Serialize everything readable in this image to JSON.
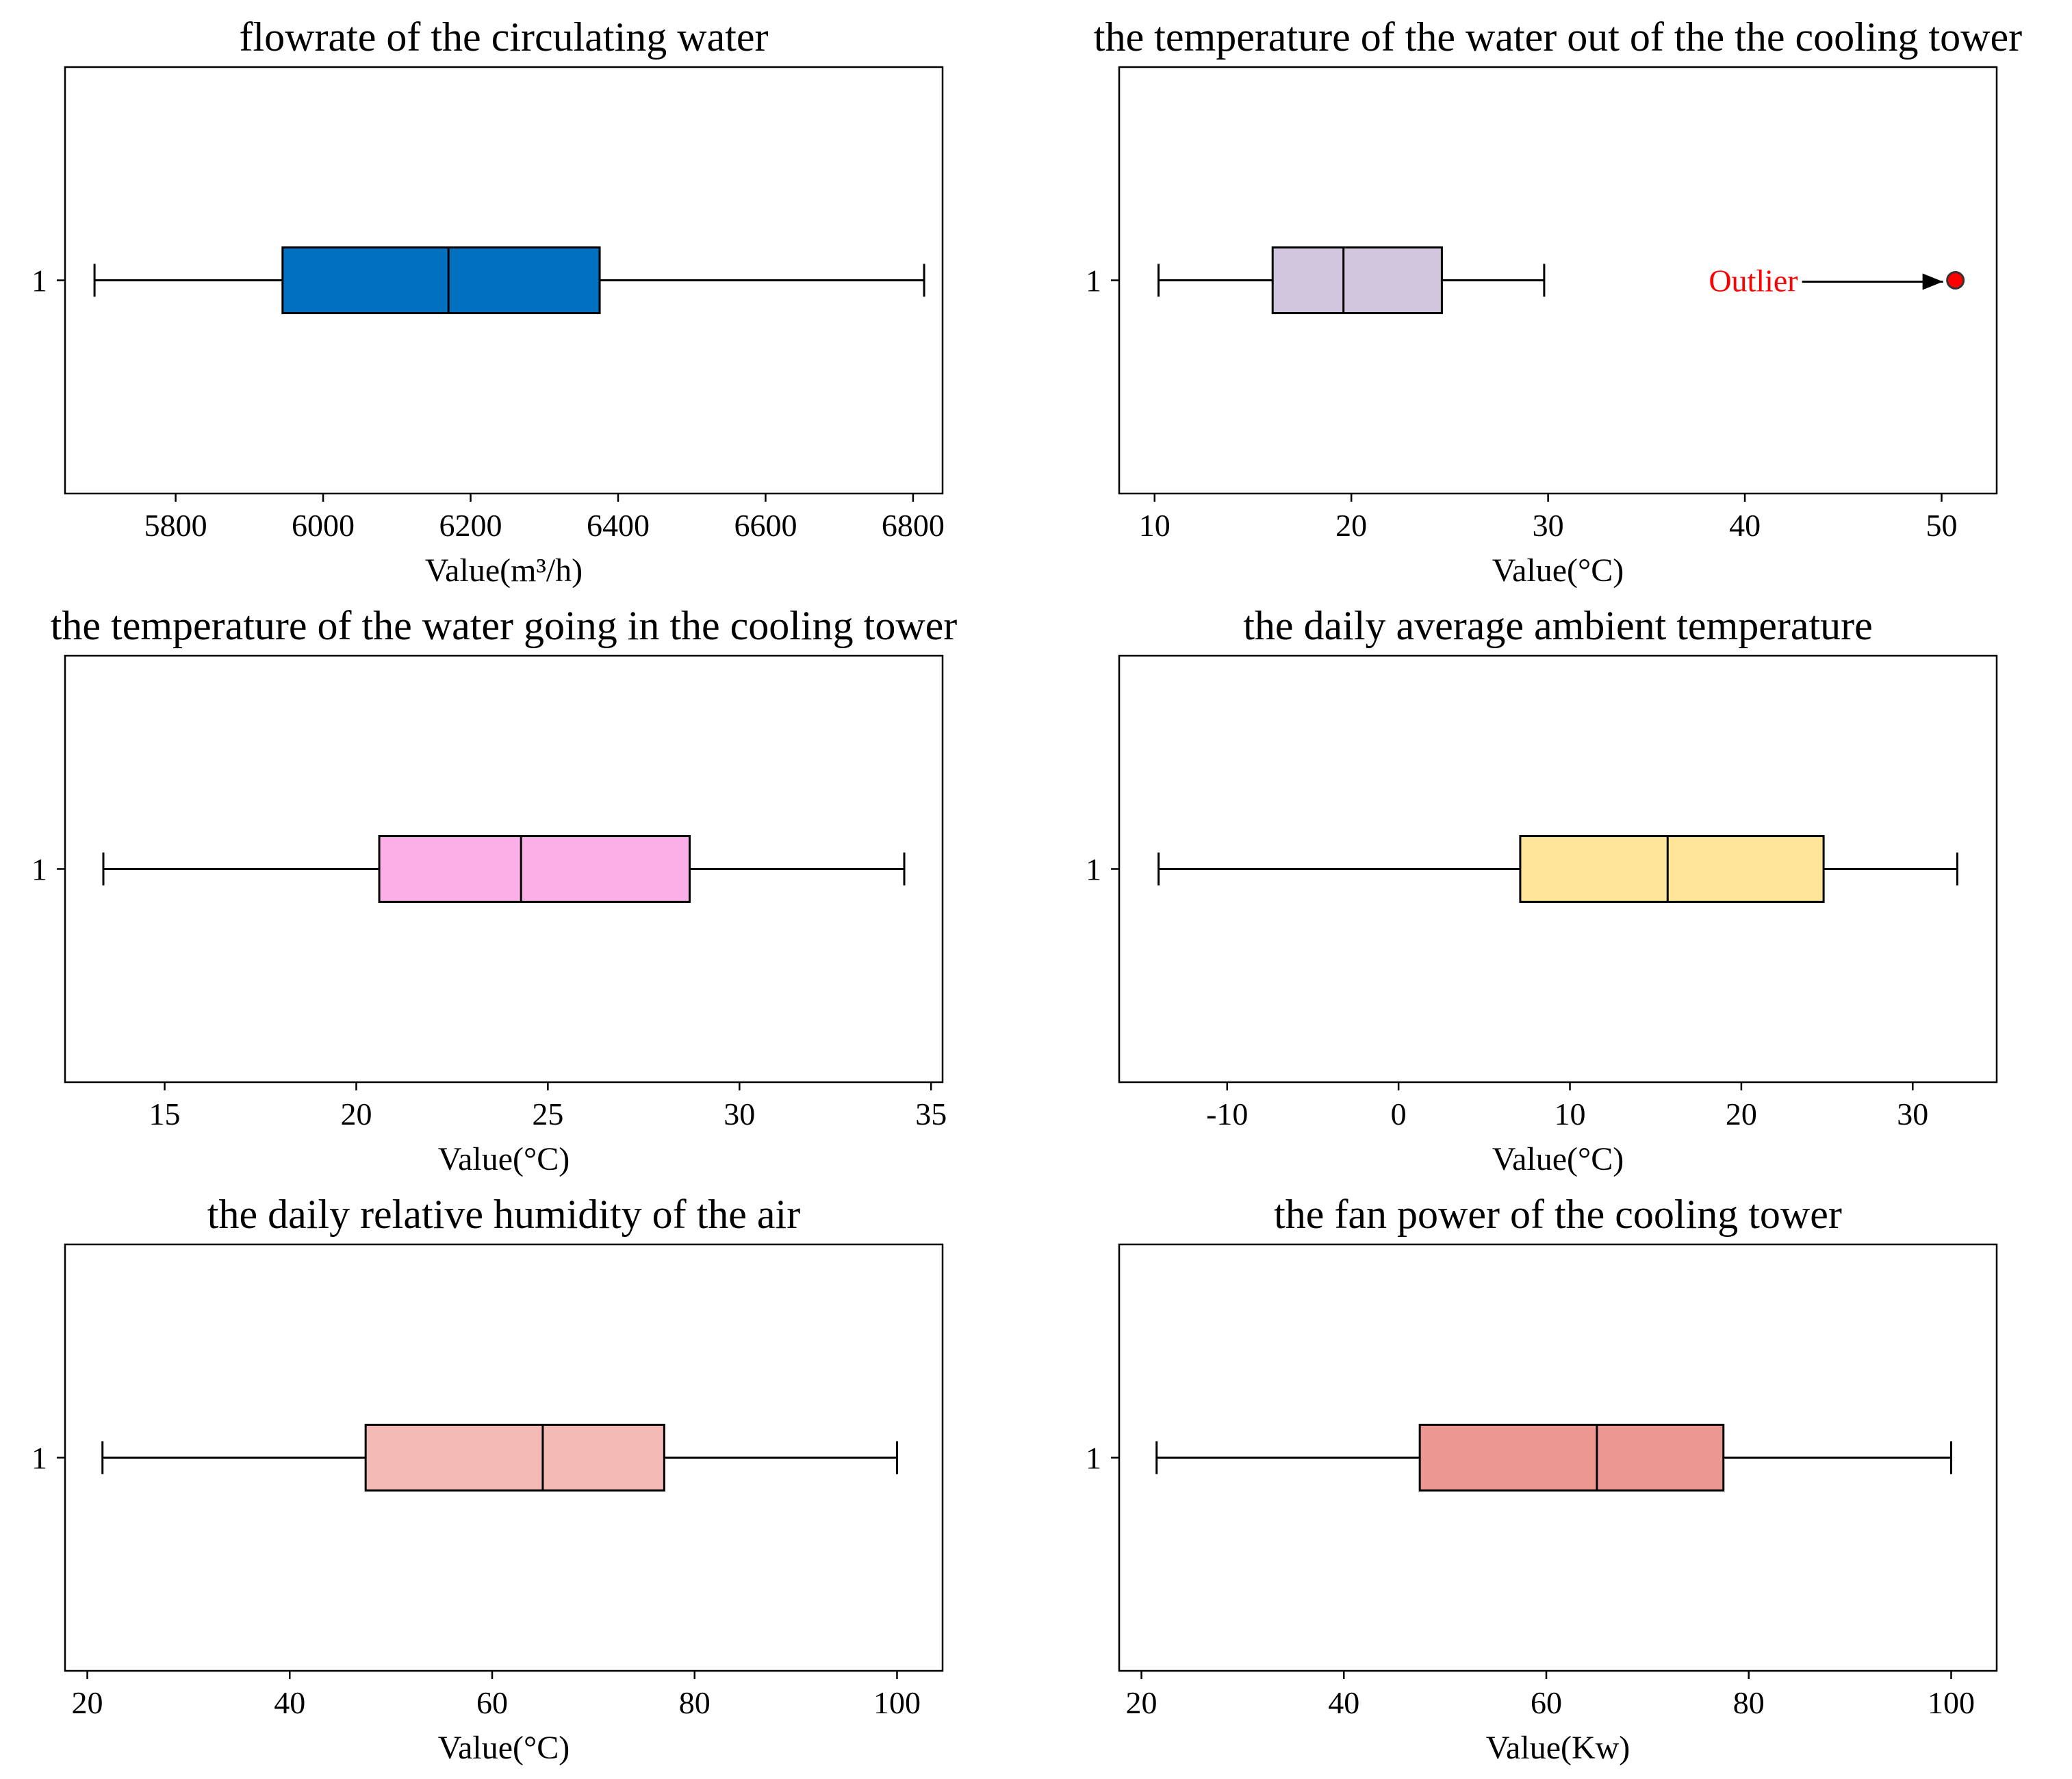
{
  "chart_data": [
    {
      "type": "boxplot",
      "title": "flowrate of the circulating water",
      "xlabel": "Value(m³/h)",
      "ylabel": "",
      "category_labels": [
        "1"
      ],
      "xlim": [
        5650,
        6840
      ],
      "xticks": [
        5800,
        6000,
        6200,
        6400,
        6600,
        6800
      ],
      "stats": {
        "whisker_low": 5690,
        "q1": 5945,
        "median": 6170,
        "q3": 6375,
        "whisker_high": 6815
      },
      "outliers": [],
      "box_color": "#0070C0"
    },
    {
      "type": "boxplot",
      "title": "the temperature of the water out of the the cooling tower",
      "xlabel": "Value(°C)",
      "ylabel": "",
      "category_labels": [
        "1"
      ],
      "xlim": [
        8.2,
        52.8
      ],
      "xticks": [
        10,
        20,
        30,
        40,
        50
      ],
      "stats": {
        "whisker_low": 10.2,
        "q1": 16.0,
        "median": 19.6,
        "q3": 24.6,
        "whisker_high": 29.8
      },
      "outliers": [
        50.7
      ],
      "annotation": "Outlier",
      "box_color": "#D2C5DE"
    },
    {
      "type": "boxplot",
      "title": "the temperature of the water going in the cooling tower",
      "xlabel": "Value(°C)",
      "ylabel": "",
      "category_labels": [
        "1"
      ],
      "xlim": [
        12.4,
        35.3
      ],
      "xticks": [
        15,
        20,
        25,
        30,
        35
      ],
      "stats": {
        "whisker_low": 13.4,
        "q1": 20.6,
        "median": 24.3,
        "q3": 28.7,
        "whisker_high": 34.3
      },
      "outliers": [],
      "box_color": "#FBAFE6"
    },
    {
      "type": "boxplot",
      "title": "the daily average ambient temperature",
      "xlabel": "Value(°C)",
      "ylabel": "",
      "category_labels": [
        "1"
      ],
      "xlim": [
        -16.3,
        34.9
      ],
      "xticks": [
        -10,
        0,
        10,
        20,
        30
      ],
      "stats": {
        "whisker_low": -14.0,
        "q1": 7.1,
        "median": 15.7,
        "q3": 24.8,
        "whisker_high": 32.6
      },
      "outliers": [],
      "box_color": "#FEE598"
    },
    {
      "type": "boxplot",
      "title": "the daily relative humidity of the air",
      "xlabel": "Value(°C)",
      "ylabel": "",
      "category_labels": [
        "1"
      ],
      "xlim": [
        17.8,
        104.5
      ],
      "xticks": [
        20,
        40,
        60,
        80,
        100
      ],
      "stats": {
        "whisker_low": 21.5,
        "q1": 47.5,
        "median": 65.0,
        "q3": 77.0,
        "whisker_high": 100.0
      },
      "outliers": [],
      "box_color": "#F3BAB6"
    },
    {
      "type": "boxplot",
      "title": "the fan power of the cooling tower",
      "xlabel": "Value(Kw)",
      "ylabel": "",
      "category_labels": [
        "1"
      ],
      "xlim": [
        17.8,
        104.5
      ],
      "xticks": [
        20,
        40,
        60,
        80,
        100
      ],
      "stats": {
        "whisker_low": 21.5,
        "q1": 47.5,
        "median": 65.0,
        "q3": 77.5,
        "whisker_high": 100.0
      },
      "outliers": [],
      "box_color": "#EC9890"
    }
  ]
}
